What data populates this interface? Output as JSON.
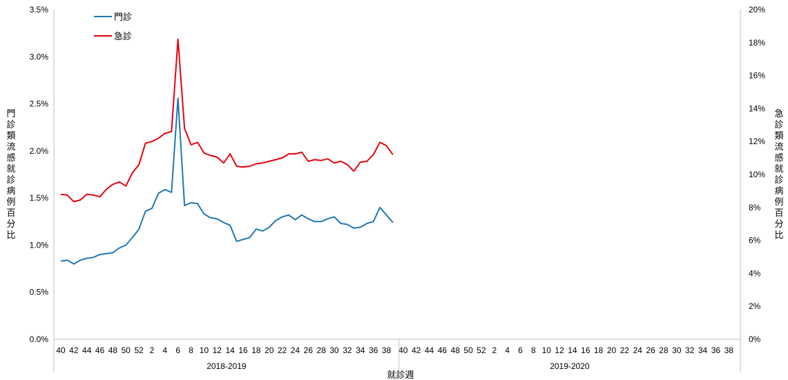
{
  "chart_data": {
    "type": "line",
    "xlabel": "就診週",
    "ylabel_left": "門診類流感就診病例百分比",
    "ylabel_right": "急診類流感就診病例百分比",
    "y_left": {
      "min": 0,
      "max": 3.5,
      "ticks": [
        "0.0%",
        "0.5%",
        "1.0%",
        "1.5%",
        "2.0%",
        "2.5%",
        "3.0%",
        "3.5%"
      ]
    },
    "y_right": {
      "min": 0,
      "max": 20,
      "ticks": [
        "0%",
        "2%",
        "4%",
        "6%",
        "8%",
        "10%",
        "12%",
        "14%",
        "16%",
        "18%",
        "20%"
      ]
    },
    "seasons": [
      {
        "label": "2018-2019",
        "week_ticks": [
          "40",
          "42",
          "44",
          "46",
          "48",
          "50",
          "52",
          "2",
          "4",
          "6",
          "8",
          "10",
          "12",
          "14",
          "16",
          "18",
          "20",
          "22",
          "24",
          "26",
          "28",
          "30",
          "32",
          "34",
          "36",
          "38"
        ]
      },
      {
        "label": "2019-2020",
        "week_ticks": [
          "40",
          "42",
          "44",
          "46",
          "48",
          "50",
          "52",
          "2",
          "4",
          "6",
          "8",
          "10",
          "12",
          "14",
          "16",
          "18",
          "20",
          "22",
          "24",
          "26",
          "28",
          "30",
          "32",
          "34",
          "36",
          "38"
        ]
      }
    ],
    "weeks_per_season": 53,
    "legend_position": "top-left",
    "grid": false,
    "series": [
      {
        "name": "門診",
        "axis": "left",
        "color": "#1f77b4",
        "values": [
          0.83,
          0.84,
          0.8,
          0.84,
          0.86,
          0.87,
          0.9,
          0.91,
          0.92,
          0.97,
          1.0,
          1.08,
          1.17,
          1.36,
          1.39,
          1.55,
          1.59,
          1.56,
          2.56,
          1.42,
          1.45,
          1.44,
          1.33,
          1.29,
          1.28,
          1.24,
          1.21,
          1.04,
          1.06,
          1.08,
          1.17,
          1.15,
          1.19,
          1.26,
          1.3,
          1.32,
          1.27,
          1.32,
          1.28,
          1.25,
          1.25,
          1.28,
          1.3,
          1.23,
          1.22,
          1.18,
          1.19,
          1.23,
          1.25,
          1.4,
          1.32,
          1.24
        ]
      },
      {
        "name": "急診",
        "axis": "right",
        "color": "#e8000b",
        "values": [
          8.8,
          8.75,
          8.35,
          8.45,
          8.8,
          8.75,
          8.65,
          9.1,
          9.4,
          9.55,
          9.3,
          10.1,
          10.6,
          11.9,
          12.0,
          12.2,
          12.5,
          12.6,
          18.2,
          12.8,
          11.8,
          11.95,
          11.3,
          11.15,
          11.05,
          10.7,
          11.25,
          10.5,
          10.45,
          10.5,
          10.65,
          10.7,
          10.8,
          10.9,
          11.0,
          11.25,
          11.25,
          11.35,
          10.8,
          10.9,
          10.85,
          10.95,
          10.7,
          10.8,
          10.6,
          10.2,
          10.75,
          10.8,
          11.2,
          11.95,
          11.75,
          11.2
        ]
      }
    ]
  }
}
